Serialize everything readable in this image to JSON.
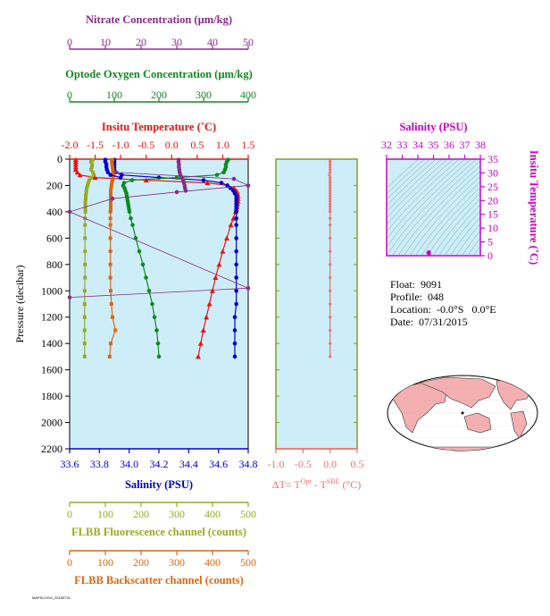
{
  "float_info": {
    "float_label": "Float:",
    "float_id": "9091",
    "profile_label": "Profile:",
    "profile_id": "048",
    "location_label": "Location:",
    "location_value": "-0.0°S   0.0°E",
    "date_label": "Date:",
    "date_value": "07/31/2015"
  },
  "footer_code": "MAPSLOGO_20150731",
  "colors": {
    "nitrate": "#8b2b8b",
    "oxygen": "#118822",
    "temperature": "#ee1111",
    "salinity": "#0000cc",
    "fluorescence": "#99aa22",
    "backscatter": "#dd6611",
    "delta_t": "#f07070",
    "ts_axis": "#cc00cc",
    "panel_bg": "#cdeef8",
    "frame": "#8a9a20",
    "sigma_lines": "#5a8aa0",
    "land": "#f4b0b0"
  },
  "chart_data": [
    {
      "type": "line",
      "name": "profile-panel",
      "ylabel": "Pressure (decibar)",
      "ylim": [
        2200,
        0
      ],
      "yticks": [
        0,
        200,
        400,
        600,
        800,
        1000,
        1200,
        1400,
        1600,
        1800,
        2000,
        2200
      ],
      "axes": {
        "nitrate": {
          "label": "Nitrate Concentration (µm/kg)",
          "range": [
            0,
            50
          ],
          "ticks": [
            0,
            10,
            20,
            30,
            40,
            50
          ]
        },
        "oxygen": {
          "label": "Optode Oxygen Concentration (µm/kg)",
          "range": [
            0,
            400
          ],
          "ticks": [
            0,
            100,
            200,
            300,
            400
          ]
        },
        "temperature": {
          "label": "Insitu Temperature (˚C)",
          "range": [
            -2.0,
            1.5
          ],
          "ticks": [
            "-2.0",
            "-1.5",
            "-1.0",
            "-0.5",
            "0.0",
            "0.5",
            "1.0",
            "1.5"
          ]
        },
        "salinity": {
          "label": "Salinity (PSU)",
          "range": [
            33.6,
            34.8
          ],
          "ticks": [
            "33.6",
            "33.8",
            "34.0",
            "34.2",
            "34.4",
            "34.6",
            "34.8"
          ]
        },
        "fluorescence": {
          "label": "FLBB Fluorescence channel (counts)",
          "range": [
            0,
            500
          ],
          "ticks": [
            0,
            100,
            200,
            300,
            400,
            500
          ]
        },
        "backscatter": {
          "label": "FLBB Backscatter channel (counts)",
          "range": [
            0,
            500
          ],
          "ticks": [
            0,
            100,
            200,
            300,
            400,
            500
          ]
        }
      },
      "series": [
        {
          "key": "temperature",
          "marker": "triangle",
          "p": [
            5,
            20,
            40,
            60,
            80,
            100,
            120,
            140,
            160,
            180,
            200,
            220,
            240,
            260,
            280,
            300,
            320,
            340,
            360,
            380,
            400,
            450,
            500,
            600,
            700,
            800,
            900,
            1000,
            1100,
            1200,
            1300,
            1400,
            1500
          ],
          "v": [
            -1.88,
            -1.88,
            -1.88,
            -1.88,
            -1.88,
            -1.85,
            -1.8,
            -1.5,
            -0.5,
            0.7,
            1.1,
            1.22,
            1.27,
            1.29,
            1.3,
            1.3,
            1.3,
            1.29,
            1.28,
            1.27,
            1.25,
            1.21,
            1.16,
            1.08,
            1.0,
            0.93,
            0.86,
            0.8,
            0.74,
            0.68,
            0.62,
            0.57,
            0.52
          ]
        },
        {
          "key": "salinity",
          "marker": "circle",
          "p": [
            5,
            20,
            40,
            60,
            80,
            100,
            120,
            140,
            160,
            180,
            200,
            220,
            240,
            260,
            280,
            300,
            320,
            340,
            360,
            380,
            400,
            450,
            500,
            600,
            700,
            800,
            900,
            1000,
            1100,
            1200,
            1300,
            1400,
            1500
          ],
          "v": [
            33.9,
            33.9,
            33.9,
            33.9,
            33.9,
            33.91,
            33.95,
            34.2,
            34.5,
            34.62,
            34.66,
            34.68,
            34.7,
            34.71,
            34.72,
            34.72,
            34.72,
            34.72,
            34.72,
            34.72,
            34.72,
            34.72,
            34.72,
            34.72,
            34.72,
            34.72,
            34.72,
            34.72,
            34.72,
            34.71,
            34.71,
            34.71,
            34.71
          ]
        },
        {
          "key": "oxygen",
          "marker": "circle",
          "p": [
            5,
            20,
            40,
            60,
            80,
            100,
            120,
            140,
            160,
            180,
            200,
            220,
            240,
            260,
            280,
            300,
            320,
            340,
            360,
            380,
            400,
            450,
            500,
            600,
            700,
            800,
            900,
            1000,
            1100,
            1200,
            1300,
            1400,
            1500
          ],
          "v": [
            355,
            352,
            350,
            350,
            348,
            345,
            330,
            240,
            140,
            122,
            120,
            123,
            125,
            127,
            128,
            129,
            130,
            131,
            132,
            133,
            134,
            137,
            141,
            148,
            156,
            164,
            171,
            178,
            185,
            190,
            195,
            198,
            200
          ]
        },
        {
          "key": "nitrate",
          "marker": "circle",
          "p": [
            5,
            20,
            40,
            60,
            80,
            100,
            120,
            140,
            160,
            180,
            200,
            220,
            240
          ],
          "v": [
            30.5,
            30.5,
            30.6,
            30.6,
            30.7,
            30.8,
            31.0,
            31.4,
            31.8,
            32.0,
            32.2,
            32.3,
            32.5
          ]
        },
        {
          "key": "fluorescence",
          "marker": "square",
          "p": [
            5,
            20,
            40,
            60,
            80,
            100,
            120,
            140,
            160,
            180,
            200,
            220,
            240,
            260,
            280,
            300,
            320,
            340,
            360,
            380,
            400,
            450,
            500,
            600,
            700,
            800,
            900,
            1000,
            1100,
            1200,
            1300,
            1400,
            1500
          ],
          "v": [
            65,
            60,
            63,
            62,
            60,
            65,
            68,
            60,
            55,
            52,
            50,
            48,
            47,
            46,
            45,
            45,
            44,
            44,
            44,
            44,
            44,
            43,
            43,
            43,
            43,
            43,
            43,
            42,
            42,
            42,
            42,
            42,
            42
          ]
        },
        {
          "key": "backscatter",
          "marker": "square",
          "p": [
            5,
            20,
            40,
            60,
            80,
            100,
            120,
            140,
            160,
            180,
            200,
            220,
            240,
            260,
            280,
            300,
            320,
            340,
            360,
            380,
            400,
            450,
            500,
            600,
            700,
            800,
            900,
            1000,
            1100,
            1200,
            1300,
            1400,
            1500
          ],
          "v": [
            120,
            118,
            119,
            120,
            121,
            122,
            123,
            122,
            120,
            118,
            117,
            116,
            115,
            115,
            115,
            115,
            115,
            115,
            115,
            115,
            114,
            114,
            114,
            114,
            114,
            114,
            114,
            115,
            117,
            120,
            128,
            115,
            112
          ]
        },
        {
          "key": "blueseg",
          "axis": "temperature",
          "marker": "circle",
          "p": [
            5,
            20,
            40,
            60,
            80,
            100,
            120,
            140
          ],
          "v": [
            -1.3,
            -1.3,
            -1.28,
            -1.28,
            -1.27,
            -1.25,
            -1.2,
            -1.0
          ]
        },
        {
          "key": "nitrate",
          "marker": "circle",
          "name": "nitrate-spikes",
          "p": [
            100,
            150,
            200,
            250,
            300,
            400,
            980,
            1050
          ],
          "v": [
            13,
            46,
            50,
            30,
            12,
            0,
            50,
            0
          ]
        }
      ]
    },
    {
      "type": "scatter",
      "name": "delta-t-panel",
      "xlabel": "ΔT= T",
      "xlabel_sup1": "Opt",
      "xlabel_mid": " - T",
      "xlabel_sup2": "SBE",
      "xlabel_end": " (°C)",
      "xlim": [
        -1.0,
        0.5
      ],
      "xticks": [
        "-1.0",
        "-0.5",
        "0.0",
        "0.5"
      ],
      "ylim": [
        2200,
        0
      ],
      "p": [
        5,
        20,
        40,
        60,
        80,
        100,
        120,
        140,
        160,
        180,
        200,
        220,
        240,
        260,
        280,
        300,
        320,
        340,
        360,
        380,
        400,
        450,
        500,
        600,
        700,
        800,
        900,
        1000,
        1100,
        1200,
        1300,
        1400,
        1500
      ],
      "v": [
        0.0,
        0.0,
        0.0,
        0.0,
        0.0,
        0.0,
        -0.01,
        0.0,
        0.0,
        0.0,
        0.0,
        0.0,
        0.0,
        0.0,
        0.0,
        0.0,
        0.0,
        0.0,
        0.0,
        0.0,
        0.0,
        0.0,
        0.0,
        0.0,
        0.0,
        0.0,
        0.0,
        0.0,
        0.0,
        0.0,
        0.0,
        0.0,
        0.0
      ]
    },
    {
      "type": "scatter",
      "name": "ts-diagram",
      "xlabel": "Salinity (PSU)",
      "ylabel": "Insitu Temperature (˚C)",
      "xlim": [
        32,
        38
      ],
      "ylim": [
        0,
        35
      ],
      "xticks": [
        32,
        33,
        34,
        35,
        36,
        37,
        38
      ],
      "yticks": [
        0,
        5,
        10,
        15,
        20,
        25,
        30,
        35
      ],
      "points_s": [
        34.66,
        34.68,
        34.7,
        34.71,
        34.72,
        34.72,
        34.72,
        34.72,
        34.72,
        34.72,
        34.71
      ],
      "points_t": [
        1.1,
        1.22,
        1.27,
        1.29,
        1.3,
        1.25,
        1.16,
        1.0,
        0.86,
        0.74,
        0.57
      ]
    }
  ]
}
